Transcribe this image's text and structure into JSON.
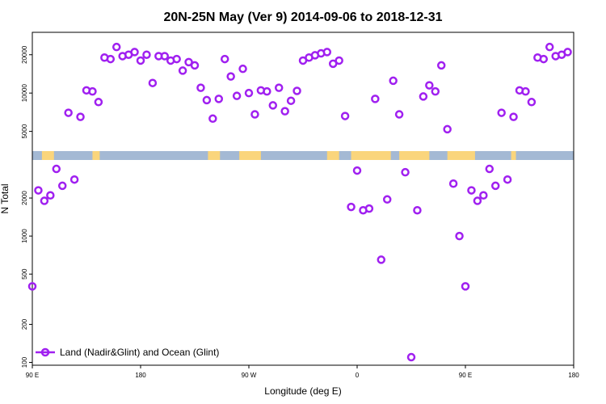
{
  "chart_data": {
    "type": "scatter",
    "title": "20N-25N May (Ver 9)   2014-09-06 to 2018-12-31",
    "xlabel": "Longitude (deg E)",
    "ylabel": "N Total",
    "x_ticks": [
      {
        "value": 90,
        "label": "90 E"
      },
      {
        "value": 180,
        "label": "180"
      },
      {
        "value": 270,
        "label": "90 W"
      },
      {
        "value": 360,
        "label": "0"
      },
      {
        "value": 450,
        "label": "90 E"
      },
      {
        "value": 540,
        "label": "180"
      }
    ],
    "y_ticks_upper": [
      5000,
      10000,
      20000
    ],
    "y_ticks_lower": [
      100,
      200,
      500,
      1000,
      2000
    ],
    "scale": "log",
    "legend": {
      "label": "Land (Nadir&Glint) and Ocean (Glint)",
      "placement": "bottom-left"
    },
    "colors": {
      "marker": "#a020f0",
      "ocean": "#a4b9d4",
      "land": "#fad57c"
    },
    "series": [
      {
        "name": "Land (Nadir&Glint) and Ocean (Glint)",
        "points": [
          [
            90,
            400
          ],
          [
            95,
            2300
          ],
          [
            100,
            1900
          ],
          [
            105,
            2100
          ],
          [
            110,
            3400
          ],
          [
            115,
            2500
          ],
          [
            120,
            7000
          ],
          [
            125,
            2800
          ],
          [
            130,
            6500
          ],
          [
            135,
            10500
          ],
          [
            140,
            10300
          ],
          [
            145,
            8500
          ],
          [
            150,
            19000
          ],
          [
            155,
            18500
          ],
          [
            160,
            23000
          ],
          [
            165,
            19500
          ],
          [
            170,
            20000
          ],
          [
            175,
            21000
          ],
          [
            180,
            18000
          ],
          [
            185,
            20000
          ],
          [
            190,
            12000
          ],
          [
            195,
            19500
          ],
          [
            200,
            19500
          ],
          [
            205,
            18000
          ],
          [
            210,
            18500
          ],
          [
            215,
            15000
          ],
          [
            220,
            17500
          ],
          [
            225,
            16500
          ],
          [
            230,
            11000
          ],
          [
            235,
            8800
          ],
          [
            240,
            6300
          ],
          [
            245,
            9000
          ],
          [
            250,
            18500
          ],
          [
            255,
            13500
          ],
          [
            260,
            9500
          ],
          [
            265,
            15500
          ],
          [
            270,
            10000
          ],
          [
            275,
            6800
          ],
          [
            280,
            10500
          ],
          [
            285,
            10300
          ],
          [
            290,
            8000
          ],
          [
            295,
            11000
          ],
          [
            300,
            7200
          ],
          [
            305,
            8700
          ],
          [
            310,
            10400
          ],
          [
            315,
            18000
          ],
          [
            320,
            19000
          ],
          [
            325,
            19800
          ],
          [
            330,
            20500
          ],
          [
            335,
            21000
          ],
          [
            340,
            17000
          ],
          [
            345,
            18000
          ],
          [
            350,
            6600
          ],
          [
            355,
            1700
          ],
          [
            360,
            3300
          ],
          [
            365,
            1600
          ],
          [
            370,
            1650
          ],
          [
            375,
            9000
          ],
          [
            380,
            650
          ],
          [
            385,
            1950
          ],
          [
            390,
            12500
          ],
          [
            395,
            6800
          ],
          [
            400,
            3200
          ],
          [
            405,
            110
          ],
          [
            410,
            1600
          ],
          [
            415,
            9400
          ],
          [
            420,
            11500
          ],
          [
            425,
            10300
          ],
          [
            430,
            16500
          ],
          [
            435,
            5200
          ],
          [
            440,
            2600
          ],
          [
            445,
            1000
          ],
          [
            450,
            400
          ],
          [
            455,
            2300
          ],
          [
            460,
            1900
          ],
          [
            465,
            2100
          ],
          [
            470,
            3400
          ],
          [
            475,
            2500
          ],
          [
            480,
            7000
          ],
          [
            485,
            2800
          ],
          [
            490,
            6500
          ],
          [
            495,
            10500
          ],
          [
            500,
            10300
          ],
          [
            505,
            8500
          ],
          [
            510,
            19000
          ],
          [
            515,
            18500
          ],
          [
            520,
            23000
          ],
          [
            525,
            19500
          ],
          [
            530,
            20000
          ],
          [
            535,
            21000
          ]
        ]
      }
    ]
  }
}
